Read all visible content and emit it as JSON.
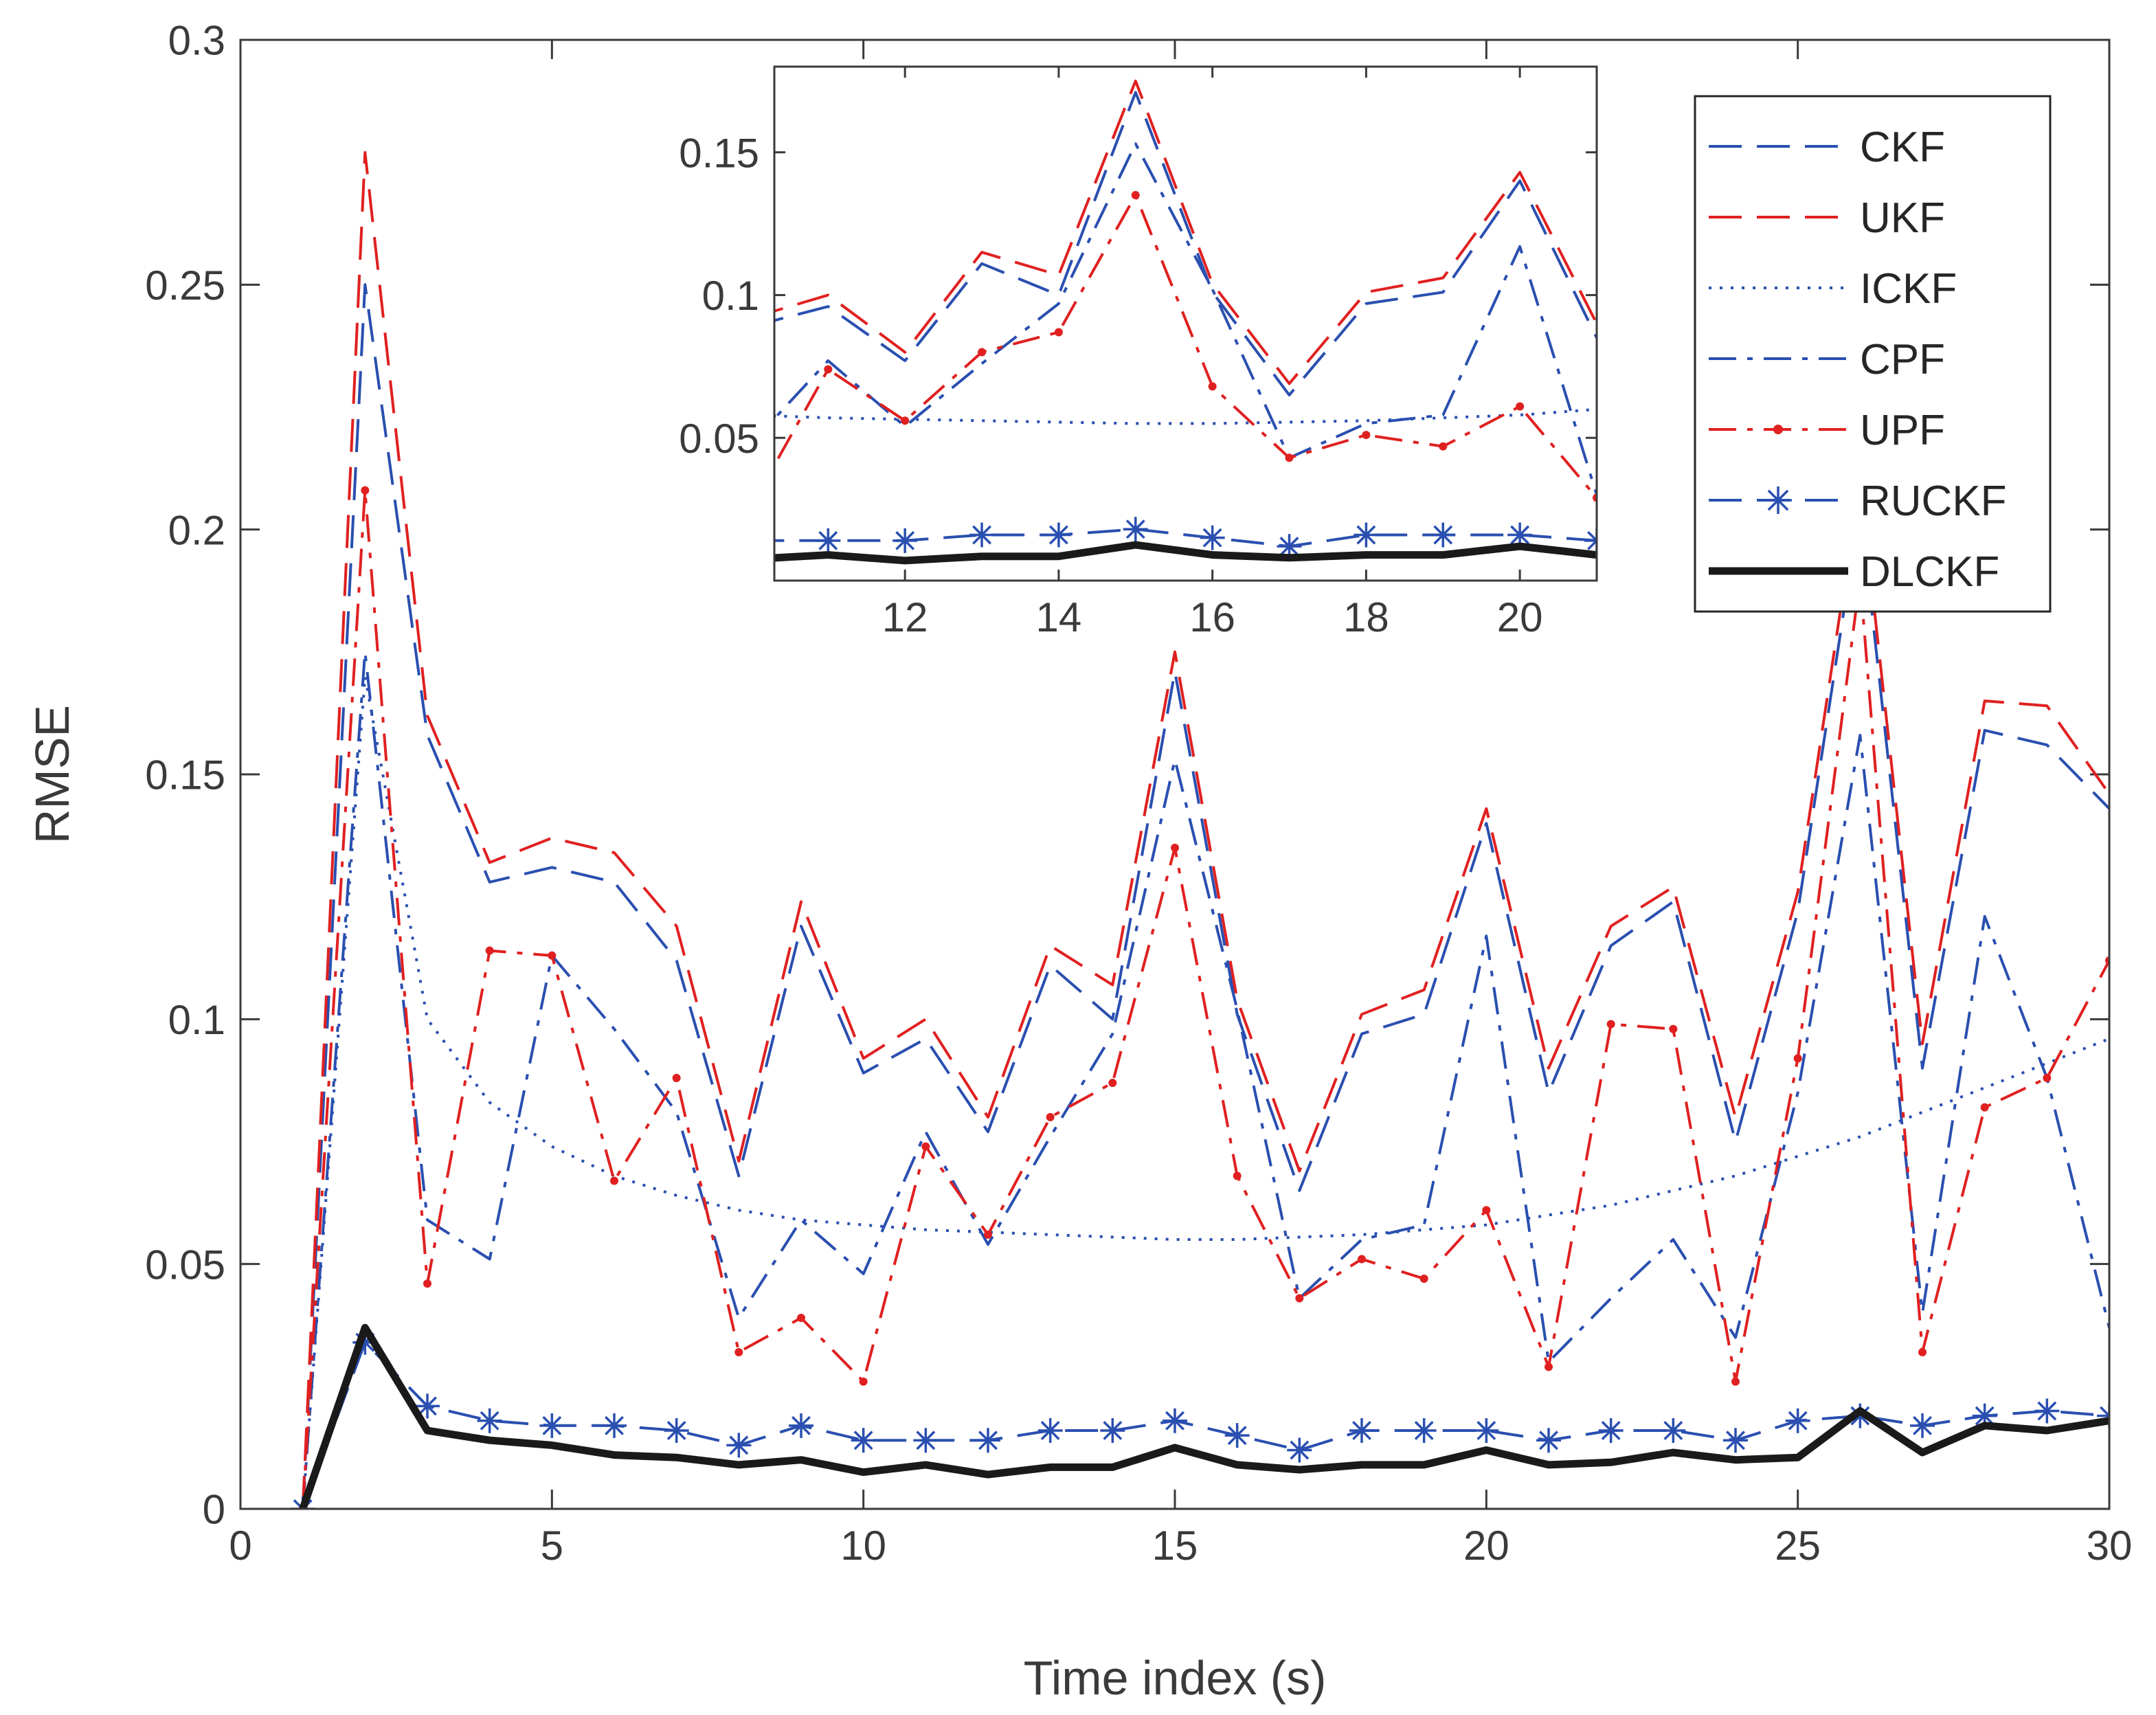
{
  "chart_data": {
    "type": "line",
    "xlabel": "Time index (s)",
    "ylabel": "RMSE",
    "xlim": [
      0,
      30
    ],
    "ylim": [
      0,
      0.3
    ],
    "xticks": [
      0,
      5,
      10,
      15,
      20,
      25,
      30
    ],
    "yticks": [
      0,
      0.05,
      0.1,
      0.15,
      0.2,
      0.25,
      0.3
    ],
    "xtick_labels": [
      "0",
      "5",
      "10",
      "15",
      "20",
      "25",
      "30"
    ],
    "ytick_labels": [
      "0",
      "0.05",
      "0.1",
      "0.15",
      "0.2",
      "0.25",
      "0.3"
    ],
    "legend_position": "top-right",
    "x": [
      1,
      2,
      3,
      4,
      5,
      6,
      7,
      8,
      9,
      10,
      11,
      12,
      13,
      14,
      15,
      16,
      17,
      18,
      19,
      20,
      21,
      22,
      23,
      24,
      25,
      26,
      27,
      28,
      29,
      30
    ],
    "series": [
      {
        "name": "CKF",
        "color": "#2a4fb0",
        "style": "dashed",
        "marker": "none",
        "values": [
          0.0,
          0.25,
          0.158,
          0.128,
          0.131,
          0.128,
          0.112,
          0.068,
          0.119,
          0.089,
          0.096,
          0.077,
          0.111,
          0.1,
          0.171,
          0.101,
          0.065,
          0.097,
          0.101,
          0.14,
          0.085,
          0.115,
          0.124,
          0.075,
          0.122,
          0.205,
          0.09,
          0.159,
          0.156,
          0.143
        ]
      },
      {
        "name": "UKF",
        "color": "#e02020",
        "style": "dashed",
        "marker": "none",
        "values": [
          0.0,
          0.277,
          0.162,
          0.132,
          0.137,
          0.134,
          0.119,
          0.071,
          0.124,
          0.092,
          0.1,
          0.08,
          0.115,
          0.107,
          0.175,
          0.104,
          0.069,
          0.101,
          0.106,
          0.143,
          0.09,
          0.119,
          0.127,
          0.08,
          0.126,
          0.21,
          0.095,
          0.165,
          0.164,
          0.146
        ]
      },
      {
        "name": "ICKF",
        "color": "#2a4fb0",
        "style": "dotted",
        "marker": "none",
        "values": [
          0.0,
          0.17,
          0.1,
          0.083,
          0.074,
          0.068,
          0.064,
          0.061,
          0.059,
          0.058,
          0.057,
          0.0565,
          0.056,
          0.0555,
          0.055,
          0.055,
          0.0555,
          0.056,
          0.057,
          0.058,
          0.06,
          0.062,
          0.065,
          0.068,
          0.072,
          0.076,
          0.081,
          0.086,
          0.091,
          0.096
        ]
      },
      {
        "name": "CPF",
        "color": "#2a4fb0",
        "style": "dashdot",
        "marker": "none",
        "values": [
          0.0,
          0.175,
          0.059,
          0.051,
          0.113,
          0.098,
          0.081,
          0.039,
          0.059,
          0.048,
          0.077,
          0.054,
          0.076,
          0.097,
          0.153,
          0.102,
          0.043,
          0.055,
          0.058,
          0.117,
          0.03,
          0.043,
          0.055,
          0.035,
          0.085,
          0.158,
          0.04,
          0.121,
          0.088,
          0.037
        ]
      },
      {
        "name": "UPF",
        "color": "#e02020",
        "style": "dashdot",
        "marker": "dot",
        "values": [
          0.0,
          0.208,
          0.046,
          0.114,
          0.113,
          0.067,
          0.088,
          0.032,
          0.039,
          0.026,
          0.074,
          0.056,
          0.08,
          0.087,
          0.135,
          0.068,
          0.043,
          0.051,
          0.047,
          0.061,
          0.029,
          0.099,
          0.098,
          0.026,
          0.092,
          0.19,
          0.032,
          0.082,
          0.088,
          0.112
        ]
      },
      {
        "name": "RUCKF",
        "color": "#2a4fb0",
        "style": "dashed",
        "marker": "asterisk",
        "values": [
          0.0,
          0.034,
          0.021,
          0.018,
          0.017,
          0.017,
          0.016,
          0.013,
          0.017,
          0.014,
          0.014,
          0.014,
          0.016,
          0.016,
          0.018,
          0.015,
          0.012,
          0.016,
          0.016,
          0.016,
          0.014,
          0.016,
          0.016,
          0.014,
          0.018,
          0.019,
          0.017,
          0.019,
          0.02,
          0.019
        ]
      },
      {
        "name": "DLCKF",
        "color": "#1a1a1a",
        "style": "solid",
        "marker": "none",
        "values": [
          0.0,
          0.037,
          0.016,
          0.014,
          0.013,
          0.011,
          0.0105,
          0.009,
          0.01,
          0.0075,
          0.009,
          0.007,
          0.0085,
          0.0085,
          0.0125,
          0.009,
          0.008,
          0.009,
          0.009,
          0.012,
          0.009,
          0.0095,
          0.0115,
          0.01,
          0.0105,
          0.02,
          0.0115,
          0.017,
          0.016,
          0.018
        ]
      }
    ],
    "inset": {
      "xlim": [
        10.3,
        21
      ],
      "ylim": [
        0,
        0.18
      ],
      "xticks": [
        12,
        14,
        16,
        18,
        20
      ],
      "yticks": [
        0.05,
        0.1,
        0.15
      ],
      "xtick_labels": [
        "12",
        "14",
        "16",
        "18",
        "20"
      ],
      "ytick_labels": [
        "0.05",
        "0.1",
        "0.15"
      ]
    }
  }
}
